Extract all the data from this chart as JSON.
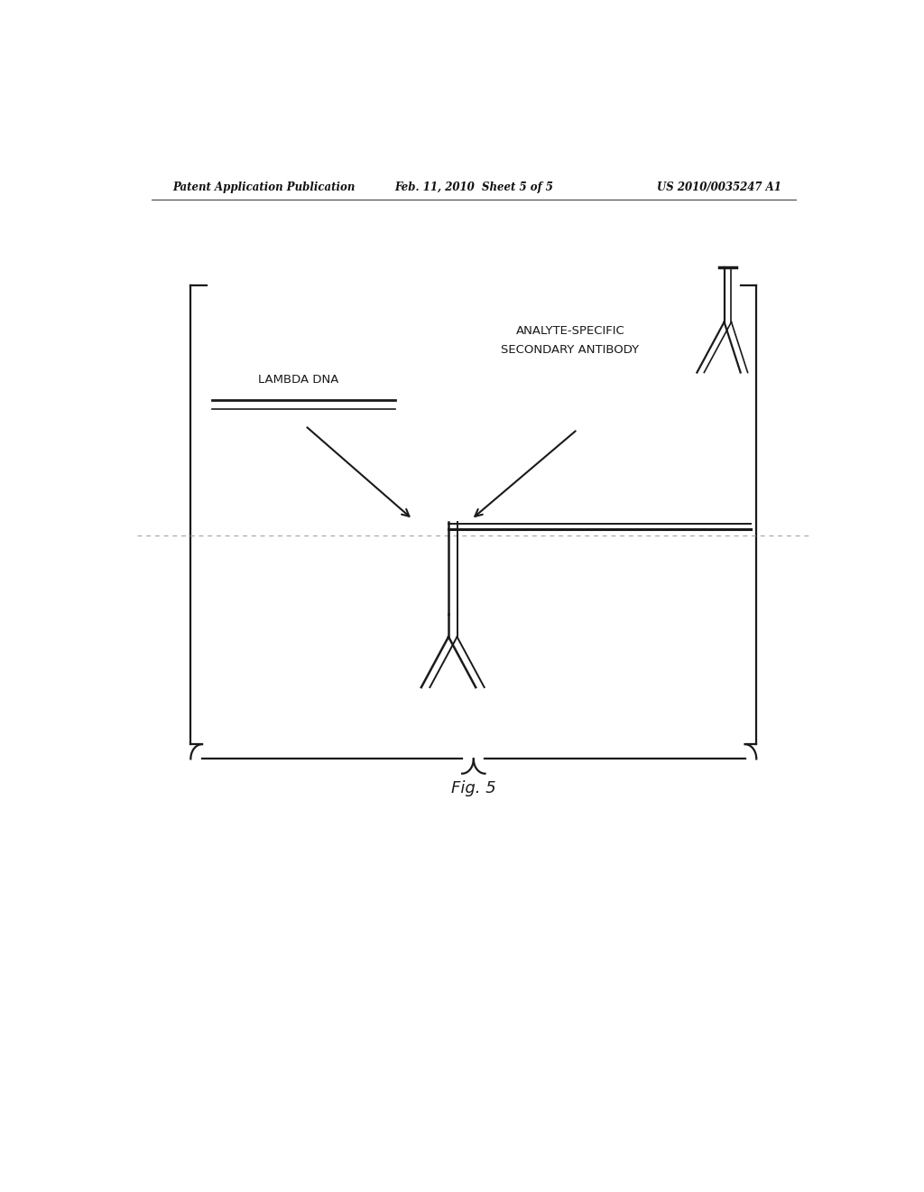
{
  "bg_color": "#ffffff",
  "header_left": "Patent Application Publication",
  "header_mid": "Feb. 11, 2010  Sheet 5 of 5",
  "header_right": "US 2010/0035247 A1",
  "fig_label": "Fig. 5",
  "label_lambda": "LAMBDA DNA",
  "label_antibody_line1": "ANALYTE-SPECIFIC",
  "label_antibody_line2": "SECONDARY ANTIBODY",
  "line_color": "#1a1a1a"
}
